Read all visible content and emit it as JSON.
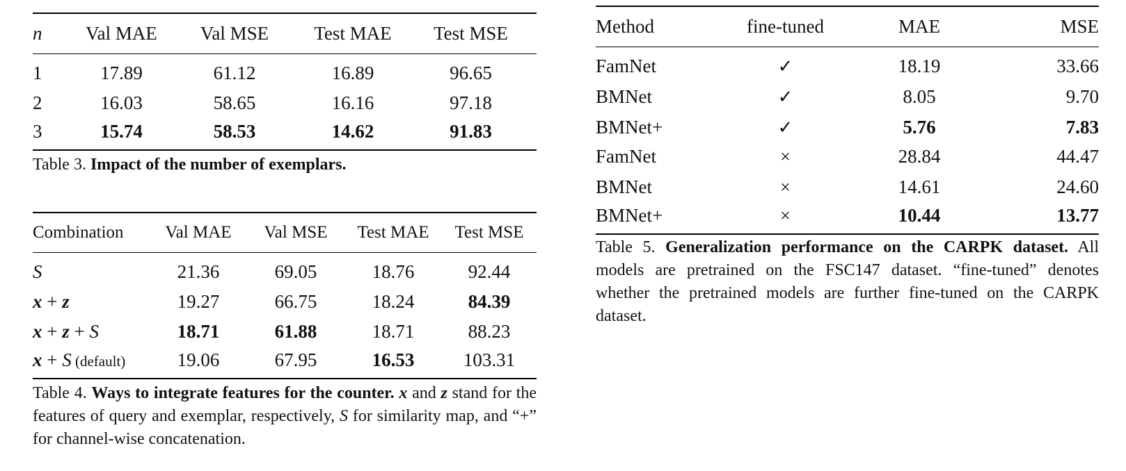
{
  "table3": {
    "headers": [
      "n",
      "Val MAE",
      "Val MSE",
      "Test MAE",
      "Test MSE"
    ],
    "rows": [
      {
        "cells": [
          "1",
          "17.89",
          "61.12",
          "16.89",
          "96.65"
        ]
      },
      {
        "cells": [
          "2",
          "16.03",
          "58.65",
          "16.16",
          "97.18"
        ]
      },
      {
        "cells": [
          "3",
          "15.74",
          "58.53",
          "14.62",
          "91.83"
        ]
      }
    ],
    "caption_prefix": "Table 3.",
    "caption_lead": "Impact of the number of exemplars."
  },
  "table4": {
    "headers": [
      "Combination",
      "Val MAE",
      "Val MSE",
      "Test MAE",
      "Test MSE"
    ],
    "rows": [
      {
        "combo_a": "S",
        "cells": [
          "21.36",
          "69.05",
          "18.76",
          "92.44"
        ]
      },
      {
        "combo_a": "x",
        "combo_op1": " + ",
        "combo_b": "z",
        "cells": [
          "19.27",
          "66.75",
          "18.24",
          "84.39"
        ]
      },
      {
        "combo_a": "x",
        "combo_op1": " + ",
        "combo_b": "z",
        "combo_op2": " + ",
        "combo_c": "S",
        "cells": [
          "18.71",
          "61.88",
          "18.71",
          "88.23"
        ]
      },
      {
        "combo_a": "x",
        "combo_op1": " + ",
        "combo_c": "S",
        "combo_note": " (default)",
        "cells": [
          "19.06",
          "67.95",
          "16.53",
          "103.31"
        ]
      }
    ],
    "caption_prefix": "Table 4.",
    "caption_lead": "Ways to integrate features for the counter.",
    "caption_x": "x",
    "caption_and": " and ",
    "caption_z": "z",
    "caption_mid": " stand for the features of query and exemplar, respectively, ",
    "caption_S": "S",
    "caption_end": " for similarity map, and “+” for channel-wise concatenation."
  },
  "table5": {
    "headers": [
      "Method",
      "fine-tuned",
      "MAE",
      "MSE"
    ],
    "rows": [
      {
        "cells": [
          "FamNet",
          "✓",
          "18.19",
          "33.66"
        ]
      },
      {
        "cells": [
          "BMNet",
          "✓",
          "8.05",
          "9.70"
        ]
      },
      {
        "cells": [
          "BMNet+",
          "✓",
          "5.76",
          "7.83"
        ]
      },
      {
        "cells": [
          "FamNet",
          "×",
          "28.84",
          "44.47"
        ]
      },
      {
        "cells": [
          "BMNet",
          "×",
          "14.61",
          "24.60"
        ]
      },
      {
        "cells": [
          "BMNet+",
          "×",
          "10.44",
          "13.77"
        ]
      }
    ],
    "caption_prefix": "Table 5.",
    "caption_lead": "Generalization performance on the CARPK dataset.",
    "caption_rest": " All models are pretrained on the FSC147 dataset. “fine-tuned” denotes whether the pretrained models are further fine-tuned on the CARPK dataset."
  }
}
